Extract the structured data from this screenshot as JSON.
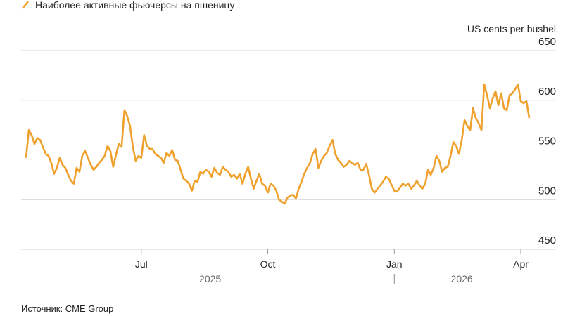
{
  "chart_data": {
    "type": "line",
    "legend_label": "Наиболее активные фьючерсы на пшеницу",
    "y_axis_label": "US cents per bushel",
    "source": "Источник: CME Group",
    "x_groups": [
      "2025",
      "2026"
    ],
    "categories": [
      null,
      null,
      null,
      null,
      null,
      null,
      null,
      null,
      null,
      null,
      null,
      null,
      null,
      null,
      null,
      null,
      null,
      null,
      null,
      null,
      null,
      null,
      null,
      null,
      null,
      null,
      null,
      null,
      null,
      null,
      null,
      null,
      null,
      null,
      null,
      null,
      null,
      null,
      null,
      null,
      null,
      "Jul",
      null,
      null,
      null,
      null,
      null,
      null,
      null,
      null,
      null,
      null,
      null,
      null,
      null,
      null,
      null,
      null,
      null,
      null,
      null,
      null,
      null,
      null,
      null,
      null,
      null,
      null,
      null,
      null,
      null,
      null,
      null,
      null,
      null,
      null,
      null,
      null,
      null,
      null,
      null,
      null,
      null,
      null,
      null,
      null,
      "Oct",
      null,
      null,
      null,
      null,
      null,
      null,
      null,
      null,
      null,
      null,
      null,
      null,
      null,
      null,
      null,
      null,
      null,
      null,
      null,
      null,
      null,
      null,
      null,
      null,
      null,
      null,
      null,
      null,
      null,
      null,
      null,
      null,
      null,
      null,
      null,
      null,
      null,
      null,
      null,
      null,
      null,
      null,
      null,
      null,
      "Jan",
      null,
      null,
      null,
      null,
      null,
      null,
      null,
      null,
      null,
      null,
      null,
      null,
      null,
      null,
      null,
      null,
      null,
      null,
      null,
      null,
      null,
      null,
      null,
      null,
      null,
      null,
      null,
      null,
      null,
      null,
      null,
      null,
      null,
      null,
      null,
      null,
      null,
      null,
      null,
      null,
      null,
      null,
      null,
      null,
      "Apr",
      null,
      null,
      null
    ],
    "series": [
      {
        "name": "Наиболее активные фьючерсы на пшеницу",
        "color": "#f0a02c",
        "values": [
          542,
          570,
          565,
          556,
          562,
          560,
          553,
          546,
          544,
          537,
          526,
          532,
          542,
          535,
          532,
          525,
          519,
          516,
          532,
          528,
          544,
          549,
          542,
          535,
          530,
          533,
          537,
          540,
          544,
          554,
          549,
          533,
          545,
          556,
          553,
          590,
          584,
          574,
          553,
          539,
          544,
          542,
          565,
          554,
          551,
          551,
          546,
          544,
          542,
          537,
          547,
          544,
          550,
          540,
          539,
          530,
          521,
          519,
          516,
          509,
          519,
          518,
          528,
          526,
          530,
          528,
          523,
          532,
          527,
          525,
          533,
          530,
          528,
          523,
          525,
          521,
          526,
          516,
          526,
          533,
          521,
          511,
          519,
          526,
          516,
          514,
          507,
          516,
          514,
          509,
          500,
          498,
          496,
          502,
          504,
          505,
          501,
          511,
          518,
          526,
          532,
          537,
          546,
          551,
          532,
          539,
          544,
          547,
          554,
          560,
          546,
          540,
          537,
          533,
          535,
          539,
          537,
          535,
          537,
          530,
          530,
          536,
          525,
          511,
          507,
          511,
          514,
          518,
          523,
          521,
          515,
          509,
          508,
          512,
          516,
          514,
          516,
          511,
          514,
          519,
          514,
          511,
          516,
          530,
          525,
          532,
          544,
          539,
          528,
          532,
          533,
          544,
          558,
          554,
          546,
          560,
          580,
          574,
          570,
          592,
          582,
          577,
          570,
          616,
          605,
          592,
          602,
          609,
          595,
          607,
          592,
          590,
          605,
          607,
          611,
          616,
          599,
          597,
          599,
          582
        ]
      }
    ],
    "ylim": [
      450,
      650
    ],
    "yticks": [
      450,
      500,
      550,
      600,
      650
    ],
    "grid": true
  }
}
